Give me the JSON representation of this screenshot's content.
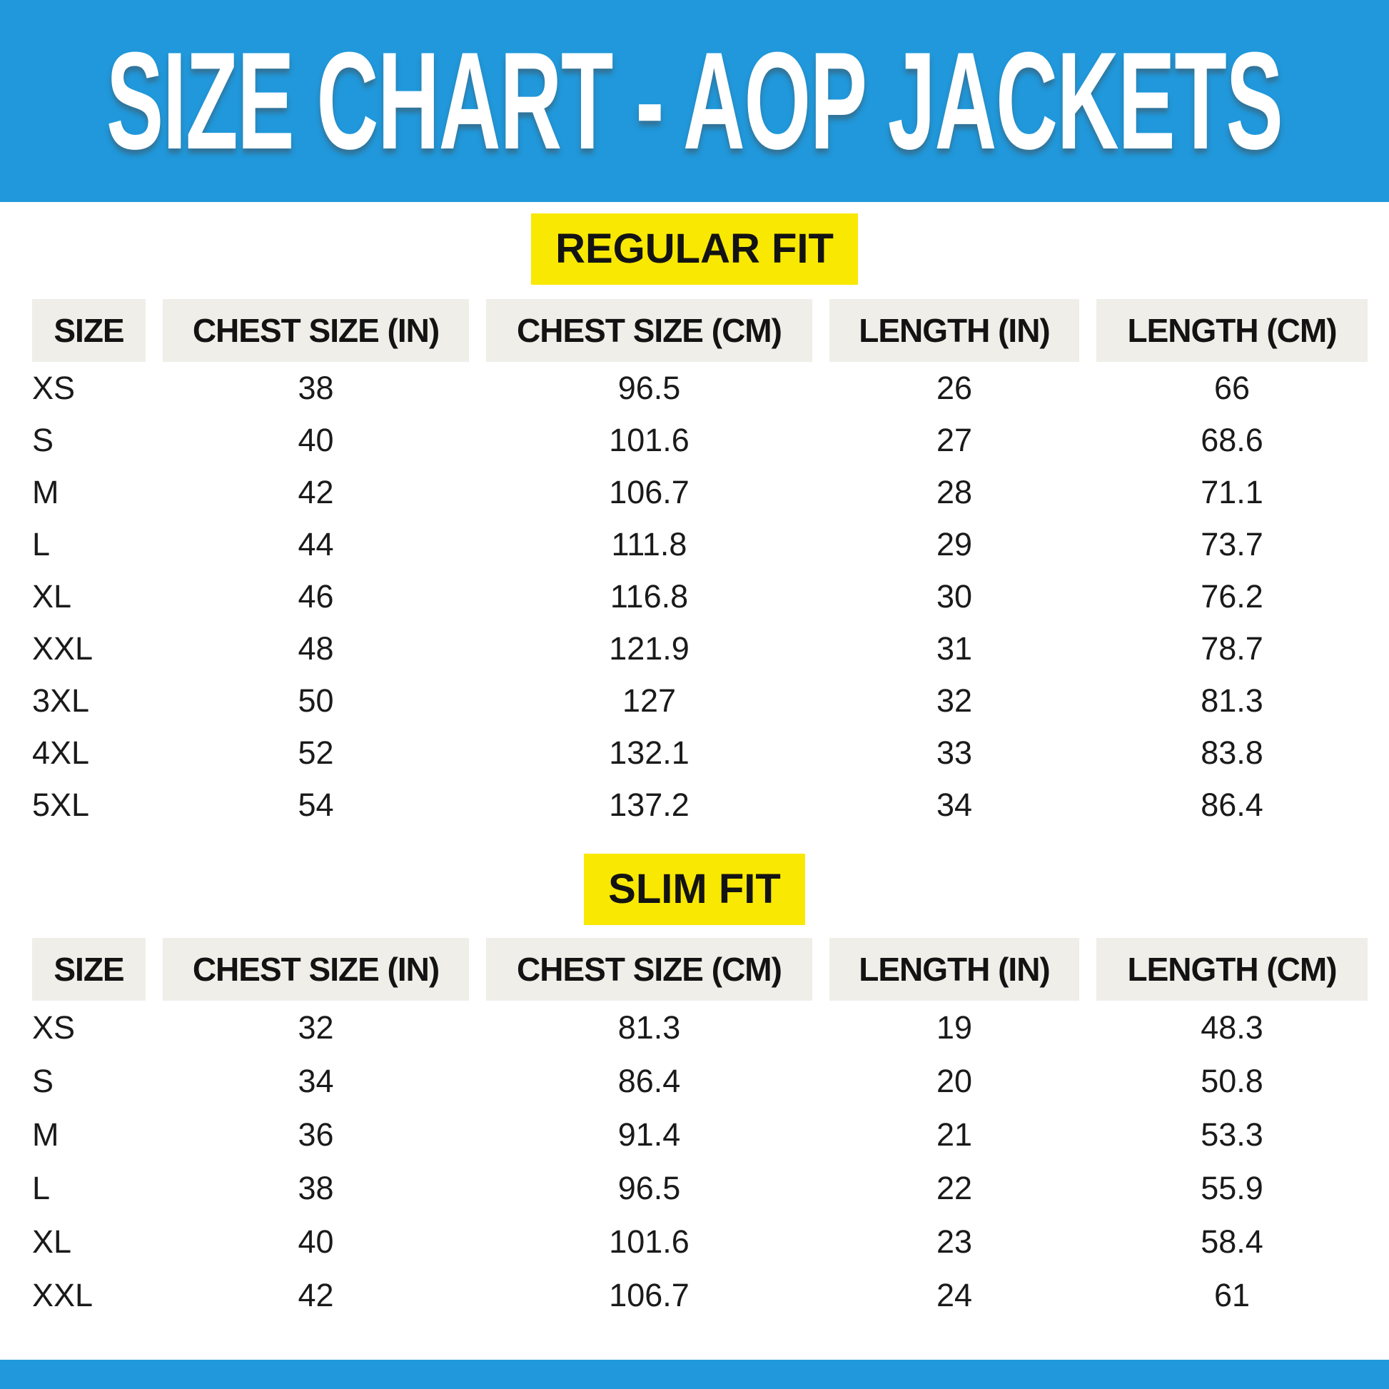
{
  "title": "SIZE CHART - AOP JACKETS",
  "colors": {
    "banner_blue": "#2098DB",
    "highlight_yellow": "#F9E802",
    "header_cell_bg": "#EFEEE8",
    "title_text": "#FFFFFF",
    "body_text": "#1A1A1A"
  },
  "chart_data": [
    {
      "type": "table",
      "title": "REGULAR FIT",
      "columns": [
        "SIZE",
        "CHEST SIZE (IN)",
        "CHEST SIZE (CM)",
        "LENGTH (IN)",
        "LENGTH (CM)"
      ],
      "rows": [
        [
          "XS",
          "38",
          "96.5",
          "26",
          "66"
        ],
        [
          "S",
          "40",
          "101.6",
          "27",
          "68.6"
        ],
        [
          "M",
          "42",
          "106.7",
          "28",
          "71.1"
        ],
        [
          "L",
          "44",
          "111.8",
          "29",
          "73.7"
        ],
        [
          "XL",
          "46",
          "116.8",
          "30",
          "76.2"
        ],
        [
          "XXL",
          "48",
          "121.9",
          "31",
          "78.7"
        ],
        [
          "3XL",
          "50",
          "127",
          "32",
          "81.3"
        ],
        [
          "4XL",
          "52",
          "132.1",
          "33",
          "83.8"
        ],
        [
          "5XL",
          "54",
          "137.2",
          "34",
          "86.4"
        ]
      ]
    },
    {
      "type": "table",
      "title": "SLIM FIT",
      "columns": [
        "SIZE",
        "CHEST SIZE (IN)",
        "CHEST SIZE (CM)",
        "LENGTH (IN)",
        "LENGTH (CM)"
      ],
      "rows": [
        [
          "XS",
          "32",
          "81.3",
          "19",
          "48.3"
        ],
        [
          "S",
          "34",
          "86.4",
          "20",
          "50.8"
        ],
        [
          "M",
          "36",
          "91.4",
          "21",
          "53.3"
        ],
        [
          "L",
          "38",
          "96.5",
          "22",
          "55.9"
        ],
        [
          "XL",
          "40",
          "101.6",
          "23",
          "58.4"
        ],
        [
          "XXL",
          "42",
          "106.7",
          "24",
          "61"
        ]
      ]
    }
  ]
}
